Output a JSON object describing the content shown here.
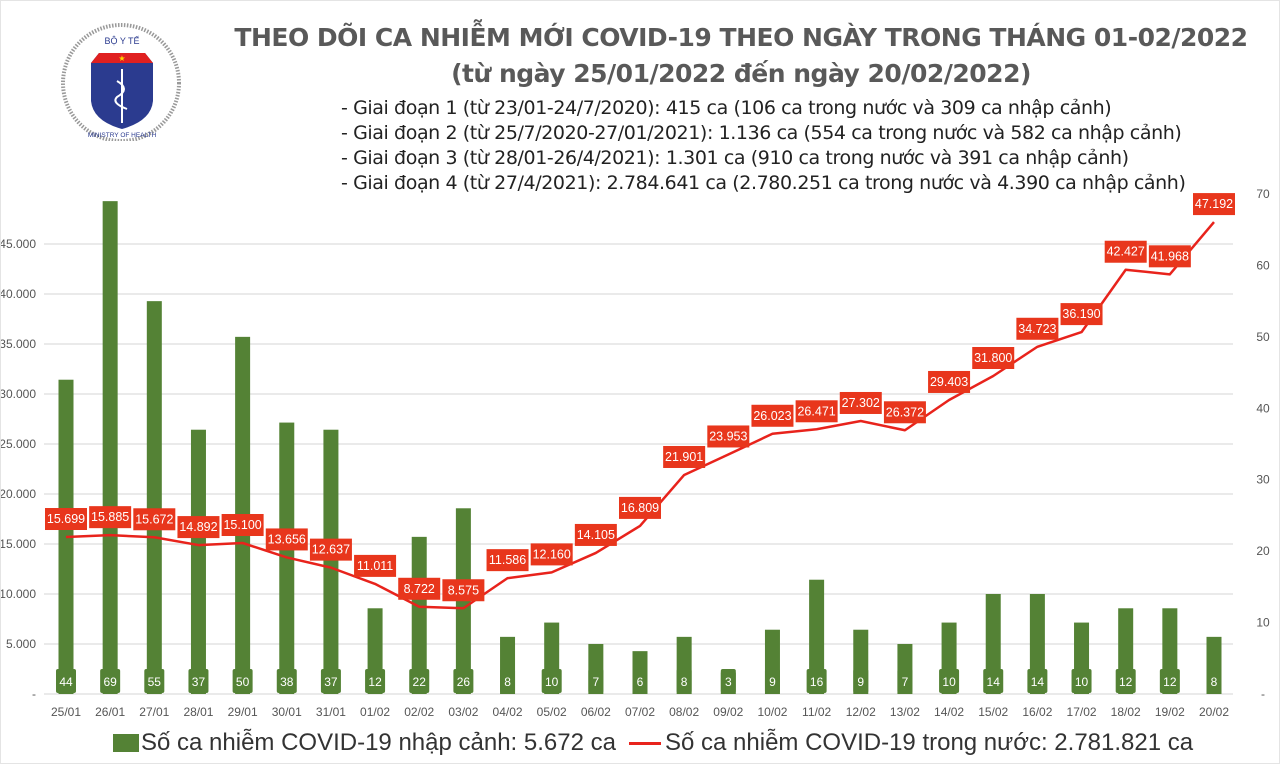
{
  "header": {
    "logo_text_top": "BỘ Y TẾ",
    "logo_text_bottom": "MINISTRY OF HEALTH",
    "title": "THEO DÕI CA NHIỄM MỚI COVID-19 THEO NGÀY TRONG THÁNG 01-02/2022",
    "subtitle": "(từ ngày 25/01/2022 đến ngày 20/02/2022)",
    "notes": [
      "- Giai đoạn 1 (từ 23/01-24/7/2020): 415 ca (106 ca trong nước và 309 ca nhập cảnh)",
      "- Giai đoạn 2 (từ 25/7/2020-27/01/2021): 1.136 ca (554 ca trong nước và 582 ca nhập cảnh)",
      "- Giai đoạn 3 (từ 28/01-26/4/2021): 1.301 ca (910 ca trong nước và 391 ca nhập cảnh)",
      "- Giai đoạn 4 (từ 27/4/2021): 2.784.641 ca (2.780.251 ca trong nước và 4.390 ca nhập cảnh)"
    ]
  },
  "chart_data": {
    "type": "bar+line",
    "categories": [
      "25/01",
      "26/01",
      "27/01",
      "28/01",
      "29/01",
      "30/01",
      "31/01",
      "01/02",
      "02/02",
      "03/02",
      "04/02",
      "05/02",
      "06/02",
      "07/02",
      "08/02",
      "09/02",
      "10/02",
      "11/02",
      "12/02",
      "13/02",
      "14/02",
      "15/02",
      "16/02",
      "17/02",
      "18/02",
      "19/02",
      "20/02"
    ],
    "series": [
      {
        "name": "Số ca nhiễm COVID-19 nhập cảnh: 5.672 ca",
        "type": "bar",
        "axis": "right",
        "color": "#548235",
        "values": [
          44,
          69,
          55,
          37,
          50,
          38,
          37,
          12,
          22,
          26,
          8,
          10,
          7,
          6,
          8,
          3,
          9,
          16,
          9,
          7,
          10,
          14,
          14,
          10,
          12,
          12,
          8
        ],
        "labels": [
          "44",
          "69",
          "55",
          "37",
          "50",
          "38",
          "37",
          "12",
          "22",
          "26",
          "8",
          "10",
          "7",
          "6",
          "8",
          "3",
          "9",
          "16",
          "9",
          "7",
          "10",
          "14",
          "14",
          "10",
          "12",
          "12",
          "8"
        ]
      },
      {
        "name": "Số ca nhiễm COVID-19 trong nước: 2.781.821 ca",
        "type": "line",
        "axis": "left",
        "color": "#e8231c",
        "values": [
          15699,
          15885,
          15672,
          14892,
          15100,
          13656,
          12637,
          11011,
          8722,
          8575,
          11586,
          12160,
          14105,
          16809,
          21901,
          23953,
          26023,
          26471,
          27302,
          26372,
          29403,
          31800,
          34723,
          36190,
          42427,
          41968,
          47192
        ],
        "labels": [
          "15.699",
          "15.885",
          "15.672",
          "14.892",
          "15.100",
          "13.656",
          "12.637",
          "11.011",
          "8.722",
          "8.575",
          "11.586",
          "12.160",
          "14.105",
          "16.809",
          "21.901",
          "23.953",
          "26.023",
          "26.471",
          "27.302",
          "26.372",
          "29.403",
          "31.800",
          "34.723",
          "36.190",
          "42.427",
          "41.968",
          "47.192"
        ]
      }
    ],
    "left_axis": {
      "ylim": [
        0,
        50000
      ],
      "ticks": [
        "-",
        "5.000",
        "10.000",
        "15.000",
        "20.000",
        "25.000",
        "30.000",
        "35.000",
        "40.000",
        "45.000"
      ]
    },
    "right_axis": {
      "ylim": [
        0,
        70
      ],
      "ticks": [
        "-",
        "10",
        "20",
        "30",
        "40",
        "50",
        "60",
        "70"
      ]
    },
    "grid": true,
    "legend_position": "bottom"
  }
}
